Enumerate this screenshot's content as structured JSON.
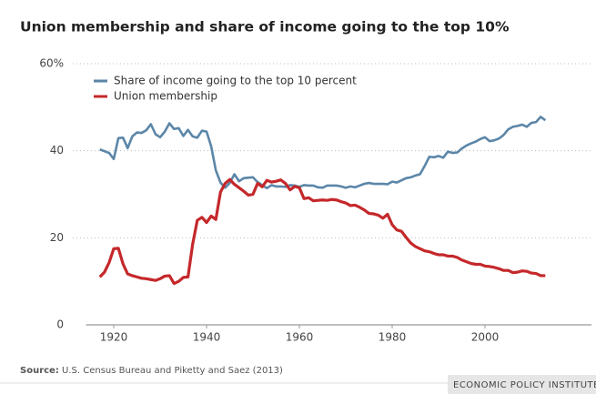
{
  "chart_data": {
    "type": "line",
    "title": "Union membership and share of income going to the top 10%",
    "x": [
      1917,
      1918,
      1919,
      1920,
      1921,
      1922,
      1923,
      1924,
      1925,
      1926,
      1927,
      1928,
      1929,
      1930,
      1931,
      1932,
      1933,
      1934,
      1935,
      1936,
      1937,
      1938,
      1939,
      1940,
      1941,
      1942,
      1943,
      1944,
      1945,
      1946,
      1947,
      1948,
      1949,
      1950,
      1951,
      1952,
      1953,
      1954,
      1955,
      1956,
      1957,
      1958,
      1959,
      1960,
      1961,
      1962,
      1963,
      1964,
      1965,
      1966,
      1967,
      1968,
      1969,
      1970,
      1971,
      1972,
      1973,
      1974,
      1975,
      1976,
      1977,
      1978,
      1979,
      1980,
      1981,
      1982,
      1983,
      1984,
      1985,
      1986,
      1987,
      1988,
      1989,
      1990,
      1991,
      1992,
      1993,
      1994,
      1995,
      1996,
      1997,
      1998,
      1999,
      2000,
      2001,
      2002,
      2003,
      2004,
      2005,
      2006,
      2007,
      2008,
      2009,
      2010,
      2011,
      2012,
      2013
    ],
    "series": [
      {
        "name": "Share of income going to the top 10 percent",
        "color": "#5b86a8",
        "values": [
          40.3,
          39.9,
          39.5,
          38.1,
          42.9,
          43.0,
          40.6,
          43.3,
          44.2,
          44.1,
          44.7,
          46.1,
          43.8,
          43.1,
          44.4,
          46.3,
          45.0,
          45.2,
          43.4,
          44.8,
          43.3,
          43.0,
          44.6,
          44.4,
          41.0,
          35.5,
          32.7,
          31.5,
          32.6,
          34.6,
          33.0,
          33.7,
          33.8,
          33.9,
          32.8,
          32.1,
          31.4,
          32.1,
          31.8,
          31.8,
          31.7,
          32.1,
          32.0,
          31.7,
          32.1,
          32.0,
          32.0,
          31.6,
          31.5,
          32.0,
          32.0,
          32.0,
          31.8,
          31.5,
          31.8,
          31.6,
          32.0,
          32.4,
          32.6,
          32.4,
          32.4,
          32.4,
          32.3,
          32.9,
          32.7,
          33.2,
          33.7,
          33.9,
          34.3,
          34.6,
          36.5,
          38.6,
          38.5,
          38.8,
          38.4,
          39.8,
          39.5,
          39.6,
          40.5,
          41.2,
          41.7,
          42.1,
          42.7,
          43.1,
          42.2,
          42.4,
          42.8,
          43.6,
          44.9,
          45.5,
          45.7,
          46.0,
          45.5,
          46.4,
          46.6,
          47.8,
          47.0
        ]
      },
      {
        "name": "Union membership",
        "color": "#c5282b",
        "values": [
          11.0,
          12.1,
          14.3,
          17.5,
          17.6,
          14.0,
          11.7,
          11.3,
          11.0,
          10.7,
          10.6,
          10.4,
          10.2,
          10.6,
          11.2,
          11.3,
          9.5,
          10.0,
          10.9,
          11.0,
          18.5,
          24.0,
          24.7,
          23.5,
          25.0,
          24.2,
          30.5,
          32.5,
          33.4,
          32.3,
          31.5,
          30.7,
          29.8,
          30.0,
          32.5,
          31.7,
          33.2,
          32.8,
          33.0,
          33.3,
          32.5,
          31.0,
          31.8,
          31.5,
          29.0,
          29.2,
          28.5,
          28.6,
          28.7,
          28.6,
          28.8,
          28.7,
          28.3,
          28.0,
          27.4,
          27.5,
          27.0,
          26.4,
          25.6,
          25.5,
          25.2,
          24.5,
          25.4,
          23.0,
          21.8,
          21.5,
          20.1,
          18.8,
          18.0,
          17.5,
          17.0,
          16.8,
          16.4,
          16.1,
          16.1,
          15.8,
          15.8,
          15.5,
          14.9,
          14.5,
          14.1,
          13.9,
          13.9,
          13.5,
          13.4,
          13.2,
          12.9,
          12.5,
          12.5,
          12.0,
          12.1,
          12.4,
          12.3,
          11.9,
          11.8,
          11.3,
          11.3
        ]
      }
    ],
    "xlim": [
      1914,
      2022
    ],
    "xticks": [
      1920,
      1940,
      1960,
      1980,
      2000
    ],
    "ylim": [
      0,
      60
    ],
    "yticks": [
      0,
      20,
      40,
      {
        "value": 60,
        "label": "60%"
      }
    ],
    "grid": true,
    "legend": "upper left",
    "source_label": "Source:",
    "source": "U.S. Census Bureau and Piketty and Saez (2013)",
    "footer": "ECONOMIC POLICY INSTITUTE"
  }
}
